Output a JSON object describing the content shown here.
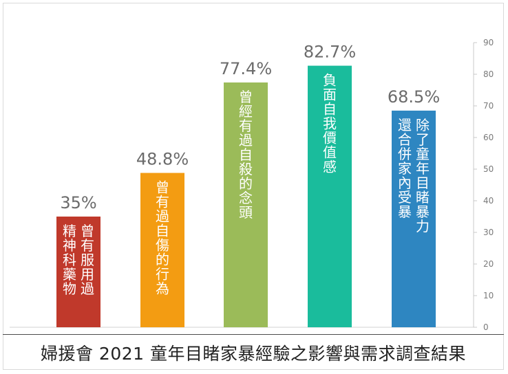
{
  "chart_data": {
    "type": "bar",
    "title": "婦援會 2021 童年目睹家暴經驗之影響與需求調查結果",
    "categories": [
      "曾有服用過精神科藥物",
      "曾有過自傷的行為",
      "曾經有過自殺的念頭",
      "負面自我價值感",
      "除了童年目睹暴力還合併家內受暴"
    ],
    "category_lines": [
      [
        "曾有服用過",
        "精神科藥物"
      ],
      [
        "曾有過自傷的行為"
      ],
      [
        "曾經有過自殺的念頭"
      ],
      [
        "負面自我價值感"
      ],
      [
        "除了童年目睹暴力",
        "還合併家內受暴"
      ]
    ],
    "values": [
      35,
      48.8,
      77.4,
      82.7,
      68.5
    ],
    "value_labels": [
      "35%",
      "48.8%",
      "77.4%",
      "82.7%",
      "68.5%"
    ],
    "colors": [
      "#c0392b",
      "#f39c12",
      "#9bbb59",
      "#1abc9c",
      "#2e86c1"
    ],
    "ylim": [
      0,
      90
    ],
    "yticks": [
      0,
      10,
      20,
      30,
      40,
      50,
      60,
      70,
      80,
      90
    ],
    "yaxis_position": "right",
    "xlabel": "",
    "ylabel": "",
    "grid": false,
    "legend": "none"
  }
}
